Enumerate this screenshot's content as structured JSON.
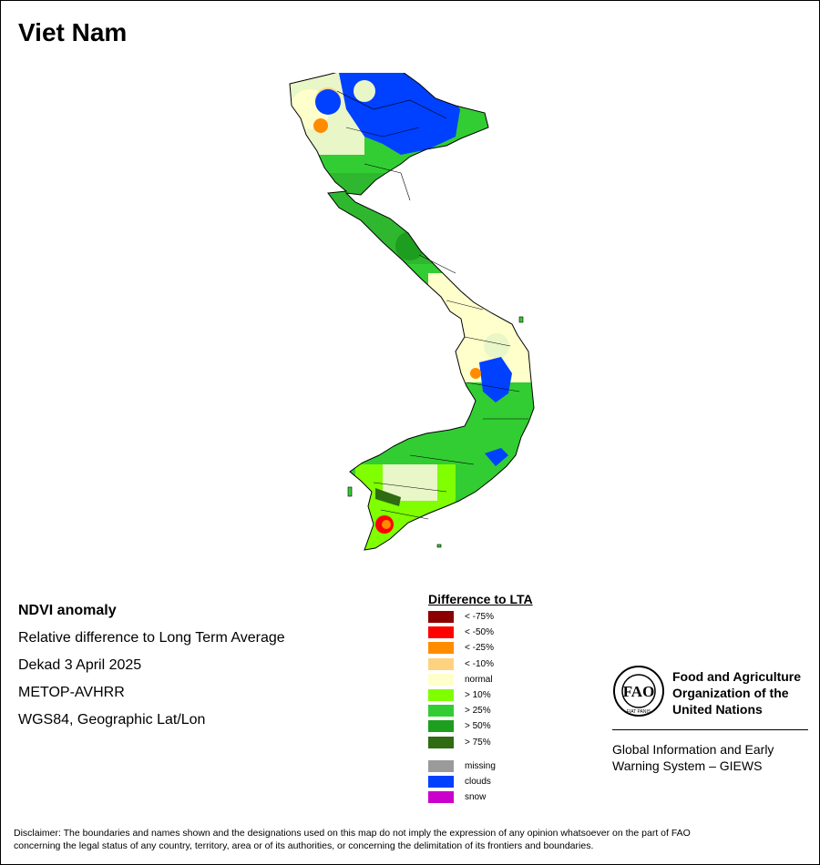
{
  "title": "Viet Nam",
  "info": {
    "heading": "NDVI anomaly",
    "line1": "Relative difference to Long Term Average",
    "line2": "Dekad 3 April 2025",
    "line3": "METOP-AVHRR",
    "line4": "WGS84, Geographic Lat/Lon"
  },
  "legend": {
    "title": "Difference to LTA",
    "classes": [
      {
        "label": "< -75%",
        "color": "#8b0000"
      },
      {
        "label": "< -50%",
        "color": "#ff0000"
      },
      {
        "label": "< -25%",
        "color": "#ff8c00"
      },
      {
        "label": "< -10%",
        "color": "#ffd27f"
      },
      {
        "label": "normal",
        "color": "#ffffcc"
      },
      {
        "label": "> 10%",
        "color": "#7fff00"
      },
      {
        "label": "> 25%",
        "color": "#32cd32"
      },
      {
        "label": "> 50%",
        "color": "#1e9e1e"
      },
      {
        "label": "> 75%",
        "color": "#2e6b12"
      }
    ],
    "other": [
      {
        "label": "missing",
        "color": "#9a9a9a"
      },
      {
        "label": "clouds",
        "color": "#0040ff"
      },
      {
        "label": "snow",
        "color": "#cc00cc"
      }
    ]
  },
  "fao": {
    "emblem_text": "FAO",
    "emblem_motto": "FIAT PANIS",
    "org_line1": "Food and Agriculture",
    "org_line2": "Organization of the",
    "org_line3": "United Nations",
    "giews_line1": "Global Information and Early",
    "giews_line2": "Warning System – GIEWS"
  },
  "disclaimer": {
    "line1": "Disclaimer: The boundaries and names shown and the designations used on this map do not imply the expression of any opinion whatsoever on the part of FAO",
    "line2": "concerning the legal status of any country, territory, area or of its authorities, or concerning the delimitation of its frontiers and boundaries."
  }
}
